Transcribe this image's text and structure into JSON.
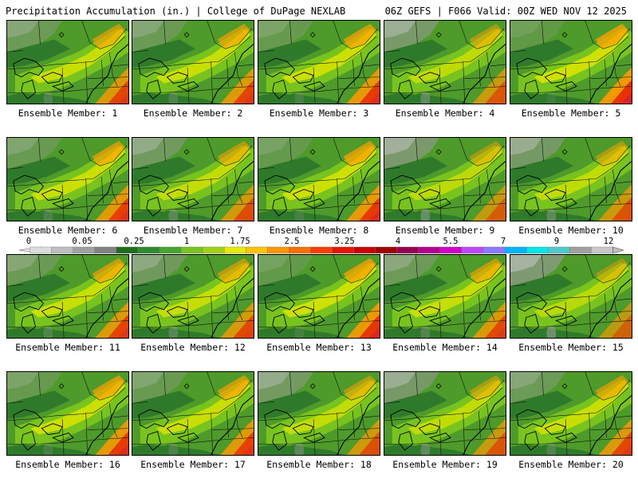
{
  "header": {
    "left": "Precipitation Accumulation (in.) | College of DuPage NEXLAB",
    "right": "06Z GEFS | F066 Valid: 00Z WED NOV 12 2025"
  },
  "panels": [
    {
      "label": "Ensemble Member: 1",
      "intensity": 0.7
    },
    {
      "label": "Ensemble Member: 2",
      "intensity": 0.72
    },
    {
      "label": "Ensemble Member: 3",
      "intensity": 0.78
    },
    {
      "label": "Ensemble Member: 4",
      "intensity": 0.55
    },
    {
      "label": "Ensemble Member: 5",
      "intensity": 0.85
    },
    {
      "label": "Ensemble Member: 6",
      "intensity": 0.75
    },
    {
      "label": "Ensemble Member: 7",
      "intensity": 0.62
    },
    {
      "label": "Ensemble Member: 8",
      "intensity": 0.8
    },
    {
      "label": "Ensemble Member: 9",
      "intensity": 0.5
    },
    {
      "label": "Ensemble Member: 10",
      "intensity": 0.58
    },
    {
      "label": "Ensemble Member: 11",
      "intensity": 0.72
    },
    {
      "label": "Ensemble Member: 12",
      "intensity": 0.66
    },
    {
      "label": "Ensemble Member: 13",
      "intensity": 0.82
    },
    {
      "label": "Ensemble Member: 14",
      "intensity": 0.68
    },
    {
      "label": "Ensemble Member: 15",
      "intensity": 0.45
    },
    {
      "label": "Ensemble Member: 16",
      "intensity": 0.78
    },
    {
      "label": "Ensemble Member: 17",
      "intensity": 0.74
    },
    {
      "label": "Ensemble Member: 18",
      "intensity": 0.6
    },
    {
      "label": "Ensemble Member: 19",
      "intensity": 0.56
    },
    {
      "label": "Ensemble Member: 20",
      "intensity": 0.7
    }
  ],
  "colorbar": {
    "tick_labels": [
      "0",
      "0.05",
      "0.25",
      "1",
      "1.75",
      "2.5",
      "3.25",
      "4",
      "5.5",
      "7",
      "9",
      "12"
    ],
    "colors": [
      "#dcdcdc",
      "#bebebe",
      "#a0a0a0",
      "#828282",
      "#1e6e1e",
      "#2f8a2f",
      "#45a52d",
      "#78c31e",
      "#a0d214",
      "#e6ec00",
      "#ffc400",
      "#ff9600",
      "#ff6e00",
      "#ff3c00",
      "#e61400",
      "#c80000",
      "#a00000",
      "#960050",
      "#b4008c",
      "#d200c8",
      "#be46ff",
      "#8c78ff",
      "#00b4ff",
      "#00e6e6",
      "#50c8c8",
      "#a0a0a0",
      "#c8c8c8"
    ]
  }
}
